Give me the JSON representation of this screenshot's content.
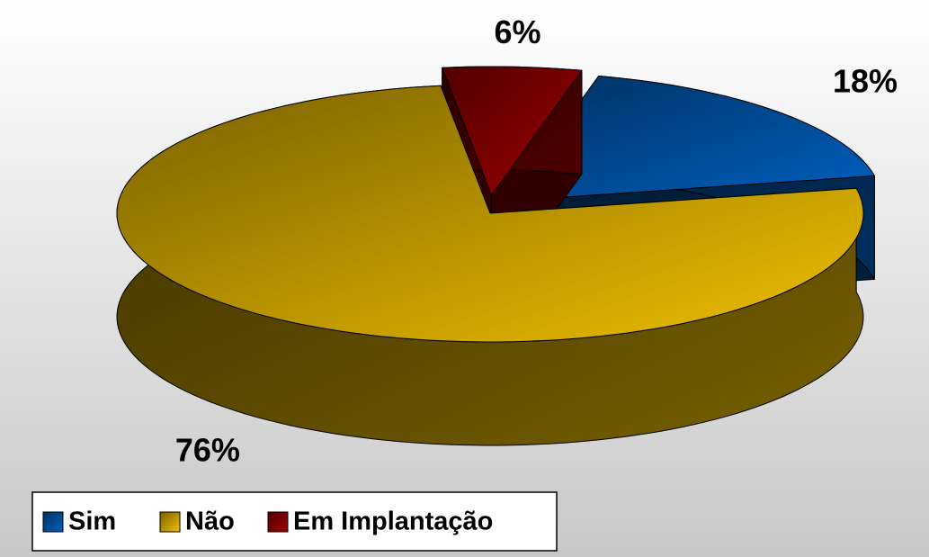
{
  "chart_data": {
    "type": "pie3d",
    "categories": [
      "Sim",
      "Não",
      "Em Implantação"
    ],
    "values": [
      18,
      76,
      6
    ],
    "value_labels": [
      "18%",
      "76%",
      "6%"
    ],
    "colors": [
      "#0060c0",
      "#f0c000",
      "#a00000"
    ],
    "legend": "bottom-left"
  }
}
